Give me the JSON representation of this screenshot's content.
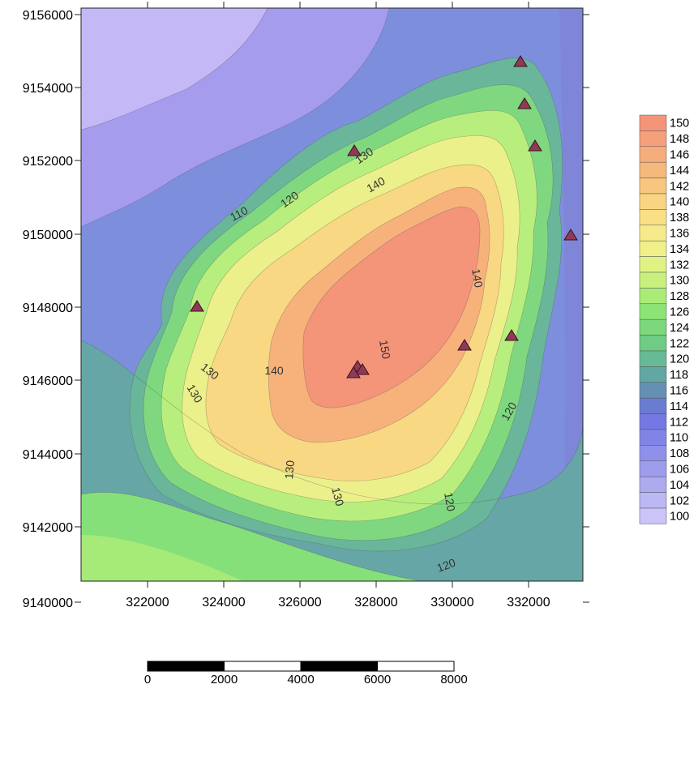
{
  "map": {
    "x_ticks": [
      "322000",
      "324000",
      "326000",
      "328000",
      "330000",
      "332000"
    ],
    "y_ticks": [
      "9156000",
      "9154000",
      "9152000",
      "9150000",
      "9148000",
      "9146000",
      "9144000",
      "9142000",
      "9140000"
    ],
    "contour_labels": [
      {
        "text": "110",
        "rotate": -28
      },
      {
        "text": "120",
        "rotate": -35
      },
      {
        "text": "130",
        "rotate": -35
      },
      {
        "text": "140",
        "rotate": -30
      },
      {
        "text": "130",
        "rotate": 38
      },
      {
        "text": "140",
        "rotate": 80
      },
      {
        "text": "150",
        "rotate": 80
      },
      {
        "text": "140",
        "rotate": 0
      },
      {
        "text": "130",
        "rotate": 60
      },
      {
        "text": "120",
        "rotate": -60
      },
      {
        "text": "130",
        "rotate": -85
      },
      {
        "text": "130",
        "rotate": 75
      },
      {
        "text": "120",
        "rotate": 80
      },
      {
        "text": "120",
        "rotate": -20
      }
    ],
    "markers_count": 11,
    "marker_color": "#8e3a57"
  },
  "legend": {
    "levels": [
      "150",
      "148",
      "146",
      "144",
      "142",
      "140",
      "138",
      "136",
      "134",
      "132",
      "130",
      "128",
      "126",
      "124",
      "122",
      "120",
      "118",
      "116",
      "114",
      "112",
      "110",
      "108",
      "106",
      "104",
      "102",
      "100"
    ],
    "colors": [
      "#f49478",
      "#f5a07a",
      "#f6ac7b",
      "#f7b87c",
      "#f8c67e",
      "#f9d482",
      "#f9e087",
      "#f6ea8a",
      "#f0f08a",
      "#dff284",
      "#c9f07c",
      "#a9ec78",
      "#8ce476",
      "#7bd87b",
      "#6fcc86",
      "#67bb94",
      "#62a8a2",
      "#6590b4",
      "#6a7cd0",
      "#7478e2",
      "#8184e6",
      "#8f90ea",
      "#9e9ced",
      "#aeaaf0",
      "#bcb8f4",
      "#cbc4f8"
    ]
  },
  "scale_bar": {
    "labels": [
      "0",
      "2000",
      "4000",
      "6000",
      "8000"
    ]
  }
}
